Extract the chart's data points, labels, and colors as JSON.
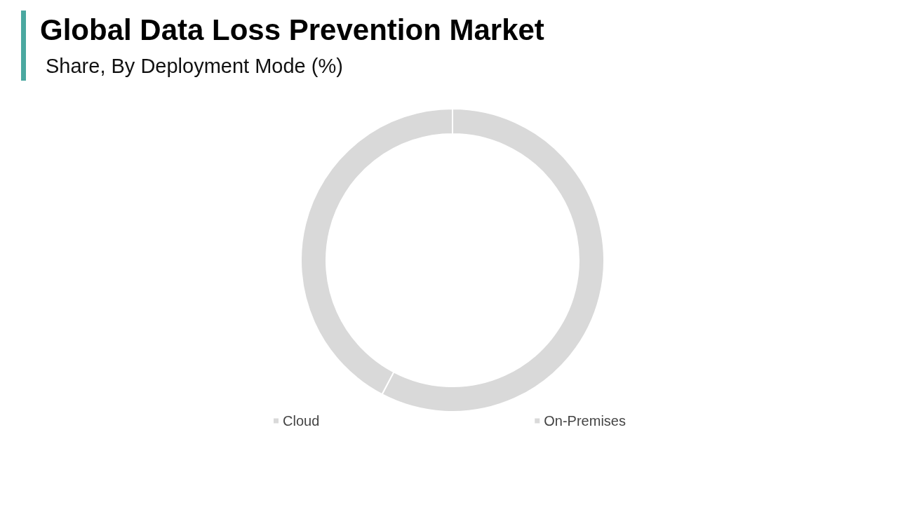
{
  "chart_data": {
    "type": "donut",
    "title": "Global Data Loss Prevention Market",
    "subtitle": "Share, By Deployment Mode (%)",
    "categories": [
      "Cloud",
      "On-Premises"
    ],
    "values": [
      57.7,
      42.3
    ],
    "colors": [
      "#d9d9d9",
      "#d9d9d9"
    ],
    "legend": "bottom"
  }
}
